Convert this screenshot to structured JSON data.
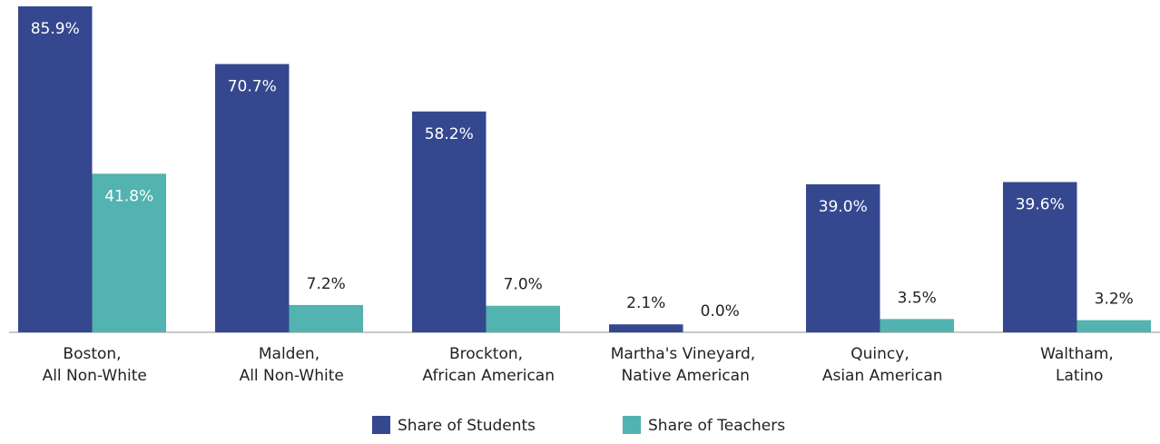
{
  "chart_data": {
    "type": "bar",
    "categories": [
      "Boston,\nAll Non-White",
      "Malden,\nAll Non-White",
      "Brockton,\nAfrican American",
      "Martha's Vineyard,\nNative American",
      "Quincy,\nAsian American",
      "Waltham,\nLatino"
    ],
    "series": [
      {
        "name": "Share of Students",
        "color": "#35488f",
        "values": [
          85.9,
          70.7,
          58.2,
          2.1,
          39.0,
          39.6
        ],
        "value_labels": [
          "85.9%",
          "70.7%",
          "58.2%",
          "2.1%",
          "39.0%",
          "39.6%"
        ]
      },
      {
        "name": "Share of Teachers",
        "color": "#52b3b0",
        "values": [
          41.8,
          7.2,
          7.0,
          0.0,
          3.5,
          3.2
        ],
        "value_labels": [
          "41.8%",
          "7.2%",
          "7.0%",
          "0.0%",
          "3.5%",
          "3.2%"
        ]
      }
    ],
    "legend": "bottom"
  }
}
